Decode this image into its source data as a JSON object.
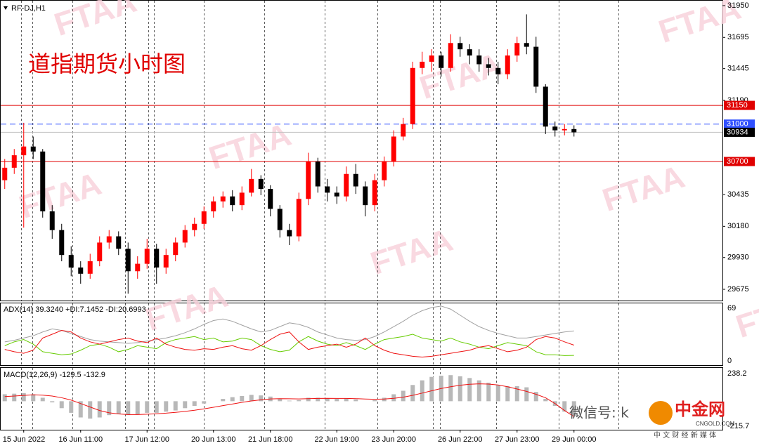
{
  "watermark": "FTAA",
  "footer": {
    "wechat": "微信号: k",
    "brand": "中金网",
    "site": "CNGOLD.COM",
    "slogan": "中 文 财 经 新 媒 体"
  },
  "chart_data": [
    {
      "type": "candlestick",
      "symbol": "RF-DJ,H1",
      "title": "道指期货小时图",
      "categories": [
        null,
        null,
        "15 Jun 2022",
        null,
        null,
        null,
        null,
        null,
        "16 Jun 11:00",
        null,
        null,
        null,
        null,
        null,
        null,
        "17 Jun 12:00",
        null,
        null,
        null,
        null,
        null,
        null,
        "20 Jun 13:00",
        null,
        null,
        null,
        null,
        null,
        "21 Jun 18:00",
        null,
        null,
        null,
        null,
        null,
        null,
        "22 Jun 19:00",
        null,
        null,
        null,
        null,
        null,
        "23 Jun 20:00",
        null,
        null,
        null,
        null,
        null,
        null,
        "26 Jun 22:00",
        null,
        null,
        null,
        null,
        null,
        "27 Jun 23:00",
        null,
        null,
        null,
        null,
        null,
        "29 Jun 00:00"
      ],
      "open": [
        30550,
        30650,
        30750,
        30820,
        30780,
        30300,
        30150,
        29950,
        29850,
        29800,
        29900,
        30050,
        30100,
        30000,
        29820,
        29880,
        30000,
        29850,
        29950,
        30050,
        30150,
        30200,
        30300,
        30380,
        30420,
        30350,
        30450,
        30560,
        30480,
        30320,
        30150,
        30100,
        30400,
        30700,
        30500,
        30450,
        30420,
        30600,
        30500,
        30350,
        30550,
        30700,
        30900,
        31000,
        31450,
        31500,
        31550,
        31450,
        31650,
        31600,
        31550,
        31480,
        31450,
        31400,
        31550,
        31650,
        31620,
        31300,
        30980,
        30950,
        30960
      ],
      "high": [
        30720,
        30800,
        31010,
        30900,
        30800,
        30350,
        30200,
        30020,
        29900,
        29960,
        30100,
        30150,
        30140,
        30050,
        29940,
        30080,
        30040,
        30000,
        30090,
        30190,
        30250,
        30340,
        30420,
        30460,
        30470,
        30500,
        30640,
        30590,
        30510,
        30350,
        30200,
        30450,
        30770,
        30730,
        30560,
        30500,
        30660,
        30680,
        30540,
        30600,
        30740,
        30950,
        31050,
        31500,
        31580,
        31600,
        31580,
        31720,
        31700,
        31640,
        31600,
        31530,
        31500,
        31600,
        31700,
        31880,
        31700,
        31320,
        31020,
        31000,
        30990
      ],
      "low": [
        30480,
        30600,
        30170,
        30720,
        30250,
        30080,
        29900,
        29780,
        29720,
        29760,
        29860,
        30000,
        29950,
        29640,
        29760,
        29840,
        29720,
        29800,
        29900,
        30010,
        30100,
        30160,
        30250,
        30330,
        30300,
        30310,
        30420,
        30430,
        30260,
        30090,
        30030,
        30060,
        30350,
        30450,
        30380,
        30360,
        30380,
        30440,
        30260,
        30300,
        30500,
        30660,
        30870,
        30960,
        31400,
        31420,
        31380,
        31420,
        31540,
        31480,
        31420,
        31390,
        31320,
        31360,
        31500,
        31560,
        31250,
        30920,
        30900,
        30910,
        30900
      ],
      "close": [
        30650,
        30750,
        30820,
        30780,
        30300,
        30150,
        29950,
        29850,
        29800,
        29900,
        30050,
        30100,
        30000,
        29820,
        29880,
        30000,
        29850,
        29950,
        30050,
        30150,
        30200,
        30300,
        30380,
        30420,
        30350,
        30450,
        30560,
        30480,
        30320,
        30150,
        30100,
        30400,
        30700,
        30500,
        30450,
        30420,
        30600,
        30500,
        30350,
        30550,
        30700,
        30900,
        31000,
        31450,
        31500,
        31550,
        31450,
        31650,
        31600,
        31550,
        31480,
        31450,
        31400,
        31550,
        31650,
        31620,
        31300,
        30980,
        30950,
        30960,
        30934
      ],
      "up_color": "#ff0000",
      "down_color": "#000000",
      "ylim": [
        29585,
        31995
      ],
      "yticks": [
        29675,
        29930,
        30180,
        30435,
        31190,
        31445,
        31695,
        31950
      ],
      "levels": [
        {
          "value": 31150,
          "color": "#e00000",
          "tag_color": "#e00000"
        },
        {
          "value": 31000,
          "color": "#3050ff",
          "tag_color": "#3050ff",
          "dashed": true
        },
        {
          "value": 30934,
          "color": "#c0c0c0",
          "tag_color": "#000000"
        },
        {
          "value": 30700,
          "color": "#e00000",
          "tag_color": "#e00000"
        }
      ]
    },
    {
      "type": "line",
      "title": "ADX(14) 39.3240 +DI:7.1452 -DI:20.6993",
      "ylim": [
        -5.6,
        76.5
      ],
      "yticks": [
        0,
        69
      ],
      "series": [
        {
          "color": "#a0a0a0",
          "values": [
            25,
            27,
            30,
            33,
            38,
            42,
            40,
            36,
            32,
            28,
            26,
            25,
            24,
            23,
            24,
            26,
            28,
            30,
            33,
            37,
            42,
            48,
            53,
            55,
            52,
            47,
            42,
            38,
            40,
            45,
            50,
            48,
            44,
            38,
            34,
            30,
            28,
            27,
            28,
            32,
            38,
            45,
            52,
            60,
            66,
            70,
            72,
            68,
            60,
            52,
            45,
            40,
            36,
            33,
            30,
            30,
            32,
            34,
            36,
            38,
            39.324
          ]
        },
        {
          "color": "#66cc00",
          "values": [
            20,
            25,
            28,
            22,
            12,
            10,
            8,
            9,
            14,
            20,
            22,
            18,
            12,
            15,
            20,
            18,
            16,
            24,
            28,
            30,
            32,
            28,
            30,
            25,
            26,
            30,
            28,
            20,
            15,
            12,
            14,
            25,
            32,
            26,
            22,
            20,
            24,
            20,
            15,
            22,
            28,
            30,
            32,
            35,
            30,
            28,
            26,
            30,
            25,
            22,
            18,
            16,
            20,
            24,
            22,
            20,
            12,
            8,
            8,
            7,
            7.1452
          ]
        },
        {
          "color": "#ee1111",
          "values": [
            15,
            12,
            10,
            14,
            30,
            35,
            40,
            38,
            30,
            25,
            22,
            25,
            28,
            30,
            26,
            24,
            30,
            22,
            18,
            15,
            14,
            16,
            15,
            18,
            20,
            16,
            14,
            20,
            28,
            35,
            38,
            25,
            15,
            18,
            20,
            22,
            18,
            22,
            30,
            20,
            14,
            10,
            8,
            6,
            5,
            6,
            8,
            10,
            12,
            14,
            18,
            20,
            16,
            12,
            14,
            18,
            28,
            32,
            30,
            25,
            20.6993
          ]
        }
      ]
    },
    {
      "type": "macd",
      "title": "MACD(12,26,9) -129.5 -132.9",
      "ylim": [
        -246,
        293
      ],
      "yticks": [
        -215.7,
        238.2
      ],
      "series": [
        {
          "color": "#b8b8b8",
          "values": [
            60,
            65,
            70,
            60,
            30,
            -10,
            -60,
            -100,
            -140,
            -150,
            -140,
            -120,
            -110,
            -120,
            -115,
            -100,
            -100,
            -90,
            -80,
            -60,
            -40,
            -20,
            0,
            20,
            35,
            45,
            55,
            50,
            40,
            20,
            5,
            10,
            30,
            30,
            25,
            20,
            25,
            15,
            0,
            10,
            30,
            60,
            90,
            140,
            180,
            210,
            220,
            225,
            215,
            200,
            180,
            160,
            140,
            130,
            130,
            120,
            80,
            20,
            -40,
            -90,
            -129.5
          ]
        },
        {
          "color": "#ee1111",
          "values": [
            40,
            45,
            50,
            55,
            52,
            45,
            30,
            10,
            -20,
            -50,
            -80,
            -100,
            -110,
            -115,
            -115,
            -112,
            -108,
            -103,
            -96,
            -88,
            -78,
            -66,
            -52,
            -38,
            -24,
            -10,
            2,
            12,
            20,
            22,
            21,
            20,
            22,
            24,
            25,
            24,
            24,
            22,
            19,
            17,
            19,
            25,
            35,
            51,
            70,
            90,
            110,
            125,
            138,
            146,
            150,
            148,
            140,
            125,
            105,
            85,
            60,
            30,
            -20,
            -80,
            -132.9
          ]
        }
      ]
    }
  ]
}
